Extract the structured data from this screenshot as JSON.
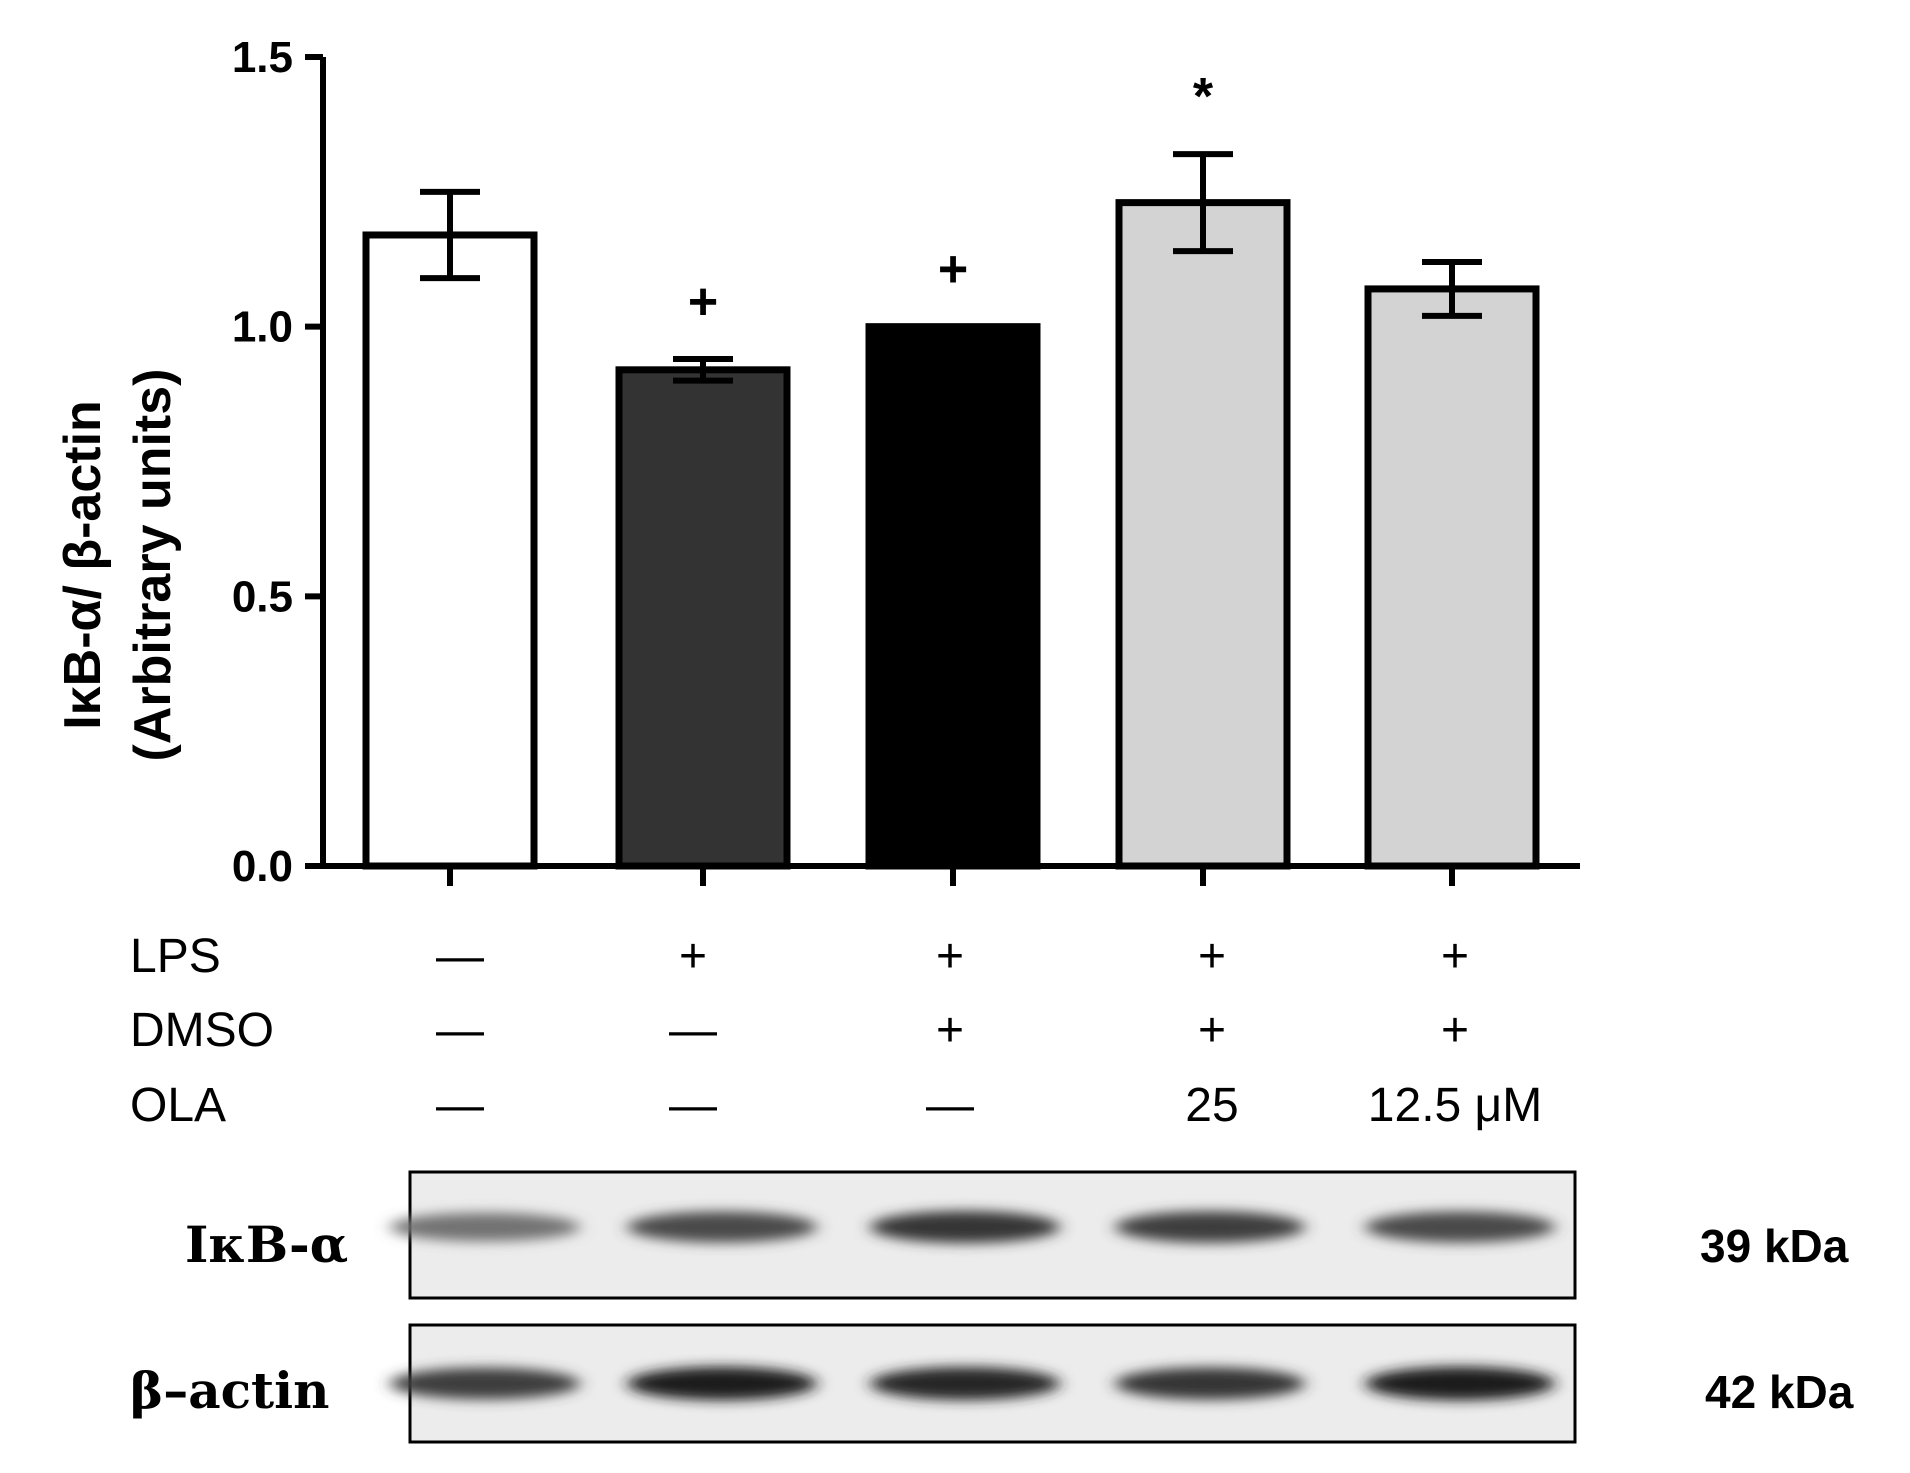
{
  "chart_data": {
    "type": "bar",
    "ylabel_line1": "IκB-α/ β-actin",
    "ylabel_line2": "(Arbitrary units)",
    "ylim": [
      0,
      1.5
    ],
    "yticks": [
      "0.0",
      "0.5",
      "1.0",
      "1.5"
    ],
    "ytick_values": [
      0.0,
      0.5,
      1.0,
      1.5
    ],
    "grid": false,
    "bars": [
      {
        "value": 1.17,
        "error": 0.08,
        "color": "#ffffff",
        "annotation": ""
      },
      {
        "value": 0.92,
        "error": 0.02,
        "color": "#333333",
        "annotation": "+"
      },
      {
        "value": 1.0,
        "error": 0.0,
        "color": "#000000",
        "annotation": "+"
      },
      {
        "value": 1.23,
        "error": 0.09,
        "color": "#d3d3d3",
        "annotation": "*"
      },
      {
        "value": 1.07,
        "error": 0.05,
        "color": "#d3d3d3",
        "annotation": ""
      }
    ]
  },
  "conditions": {
    "rows": [
      {
        "label": "LPS",
        "values": [
          "—",
          "+",
          "+",
          "+",
          "+"
        ]
      },
      {
        "label": "DMSO",
        "values": [
          "—",
          "—",
          "+",
          "+",
          "+"
        ]
      },
      {
        "label": "OLA",
        "values": [
          "—",
          "—",
          "—",
          "25",
          "12.5 μM"
        ]
      }
    ]
  },
  "blots": [
    {
      "label": "IκB-α",
      "size": "39 kDa",
      "band_intensity": [
        0.55,
        0.75,
        0.85,
        0.8,
        0.75
      ]
    },
    {
      "label": "β–actin",
      "size": "42 kDa",
      "band_intensity": [
        0.8,
        0.95,
        0.92,
        0.85,
        0.97
      ]
    }
  ]
}
